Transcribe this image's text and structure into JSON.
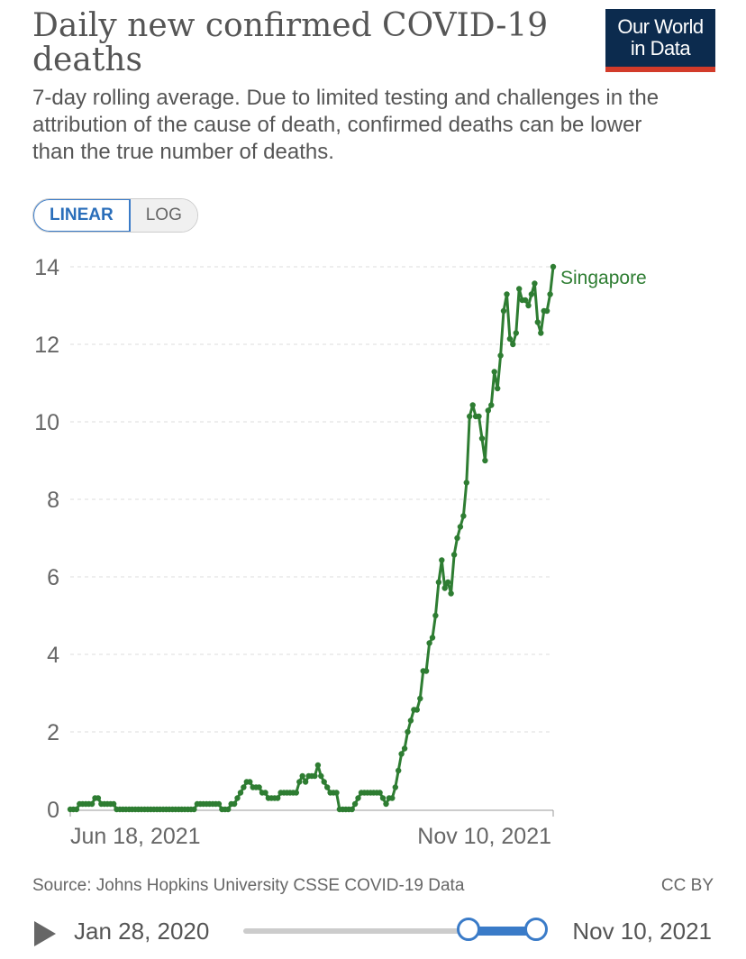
{
  "title": "Daily new confirmed COVID-19 deaths",
  "subtitle": "7-day rolling average. Due to limited testing and challenges in the attribution of the cause of death, confirmed deaths can be lower than the true number of deaths.",
  "logo": {
    "line1": "Our World",
    "line2": "in Data"
  },
  "scale_toggle": {
    "linear": "LINEAR",
    "log": "LOG",
    "selected": "LINEAR"
  },
  "source": "Source: Johns Hopkins University CSSE COVID-19 Data",
  "license": "CC BY",
  "timeline": {
    "start": "Jan 28, 2020",
    "end": "Nov 10, 2021",
    "range_start_fraction": 0.77,
    "range_end_fraction": 1.0
  },
  "colors": {
    "series": "#2e7d32",
    "grid": "#dddddd",
    "accent": "#3a7bc8",
    "brand": "#0c2b4e",
    "brand_stripe": "#d23b2a"
  },
  "chart_data": {
    "type": "line",
    "title": "Daily new confirmed COVID-19 deaths",
    "xlabel": "",
    "ylabel": "",
    "ylim": [
      0,
      14
    ],
    "yticks": [
      0,
      2,
      4,
      6,
      8,
      10,
      12,
      14
    ],
    "xticks": [
      "Jun 18, 2021",
      "Nov 10, 2021"
    ],
    "x_range": [
      "Jun 18, 2021",
      "Nov 10, 2021"
    ],
    "series": [
      {
        "name": "Singapore",
        "values": [
          0,
          0,
          0,
          0.14,
          0.14,
          0.14,
          0.14,
          0.14,
          0.29,
          0.29,
          0.14,
          0.14,
          0.14,
          0.14,
          0.14,
          0,
          0,
          0,
          0,
          0,
          0,
          0,
          0,
          0,
          0,
          0,
          0,
          0,
          0,
          0,
          0,
          0,
          0,
          0,
          0,
          0,
          0,
          0,
          0,
          0,
          0,
          0.14,
          0.14,
          0.14,
          0.14,
          0.14,
          0.14,
          0.14,
          0.14,
          0,
          0,
          0,
          0.14,
          0.14,
          0.29,
          0.43,
          0.57,
          0.71,
          0.71,
          0.57,
          0.57,
          0.57,
          0.43,
          0.43,
          0.29,
          0.29,
          0.29,
          0.29,
          0.43,
          0.43,
          0.43,
          0.43,
          0.43,
          0.43,
          0.71,
          0.86,
          0.71,
          0.86,
          0.86,
          0.86,
          1.14,
          0.86,
          0.71,
          0.57,
          0.43,
          0.43,
          0.43,
          0,
          0,
          0,
          0,
          0,
          0.14,
          0.29,
          0.43,
          0.43,
          0.43,
          0.43,
          0.43,
          0.43,
          0.43,
          0.29,
          0.14,
          0.29,
          0.29,
          0.57,
          1.0,
          1.43,
          1.57,
          2.0,
          2.29,
          2.57,
          2.57,
          2.86,
          3.57,
          3.57,
          4.29,
          4.43,
          5.0,
          5.86,
          6.43,
          5.71,
          5.86,
          5.57,
          6.57,
          7.0,
          7.29,
          7.57,
          8.43,
          10.14,
          10.43,
          10.14,
          10.14,
          9.57,
          9.0,
          10.29,
          10.43,
          11.29,
          10.86,
          11.71,
          12.86,
          13.29,
          12.14,
          12.0,
          12.29,
          13.43,
          13.14,
          13.14,
          13.0,
          13.29,
          13.57,
          12.57,
          12.29,
          12.86,
          12.86,
          13.29,
          14.0
        ]
      }
    ]
  }
}
